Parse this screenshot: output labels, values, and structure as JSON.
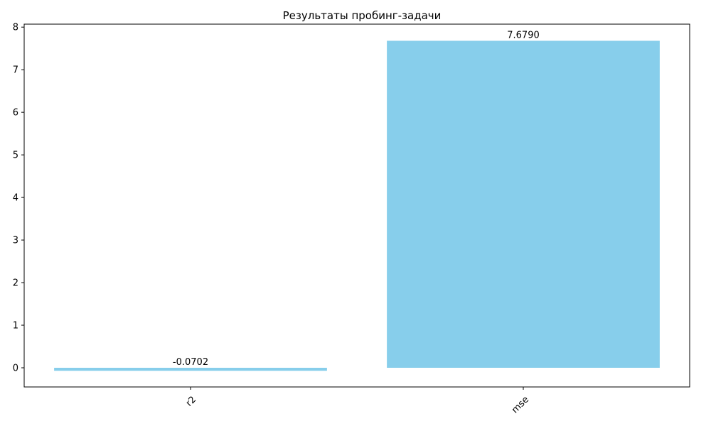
{
  "chart_data": {
    "type": "bar",
    "title": "Результаты пробинг-задачи",
    "xlabel": "",
    "ylabel": "",
    "categories": [
      "r2",
      "mse"
    ],
    "values": [
      -0.0702,
      7.679
    ],
    "value_labels": [
      "-0.0702",
      "7.6790"
    ],
    "ylim": [
      -0.45,
      8.07
    ],
    "yticks": [
      0,
      1,
      2,
      3,
      4,
      5,
      6,
      7,
      8
    ],
    "grid": false,
    "x_tick_rotation_deg": 45,
    "bar_color": "#87CEEB"
  }
}
